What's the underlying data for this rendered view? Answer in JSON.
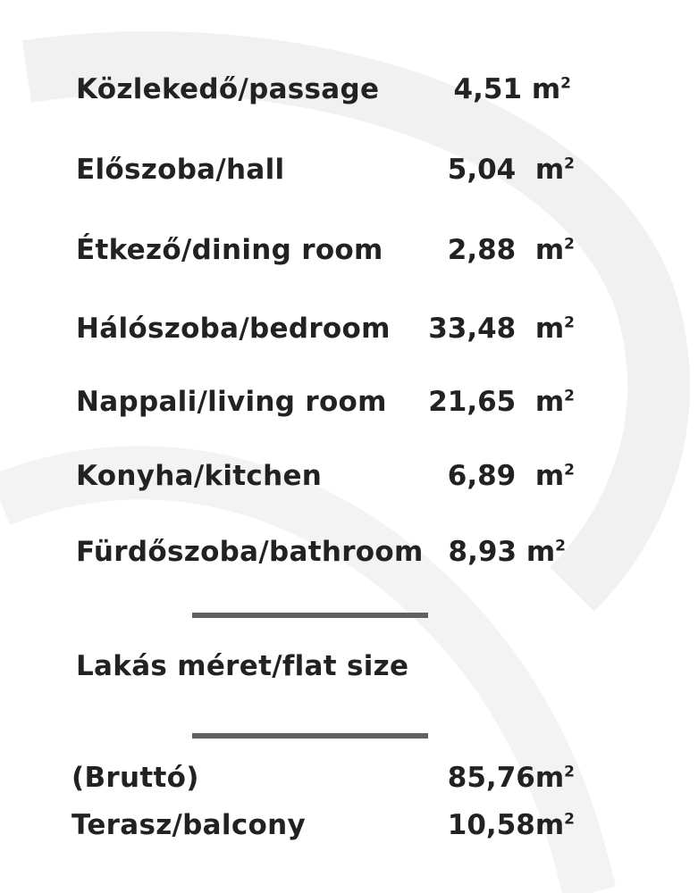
{
  "rooms": [
    {
      "label": "Közlekedő/passage",
      "value": "4,51",
      "unit": "m",
      "exp": "2"
    },
    {
      "label": "Előszoba/hall",
      "value": "5,04",
      "unit": "m",
      "exp": "2"
    },
    {
      "label": "Étkező/dining room",
      "value": "2,88",
      "unit": "m",
      "exp": "2"
    },
    {
      "label": "Hálószoba/bedroom",
      "value": "33,48",
      "unit": "m",
      "exp": "2"
    },
    {
      "label": "Nappali/living room",
      "value": "21,65",
      "unit": "m",
      "exp": "2"
    },
    {
      "label": "Konyha/kitchen",
      "value": "6,89",
      "unit": "m",
      "exp": "2"
    },
    {
      "label": "Fürdőszoba/bathroom",
      "value": "8,93",
      "unit": "m",
      "exp": "2"
    }
  ],
  "flat_size": {
    "label": "Lakás méret/flat size"
  },
  "gross": {
    "label": "(Bruttó)",
    "value": "85,76",
    "unit": "m",
    "exp": "2"
  },
  "balcony": {
    "label": "Terasz/balcony",
    "value": "10,58",
    "unit": "m",
    "exp": "2"
  }
}
